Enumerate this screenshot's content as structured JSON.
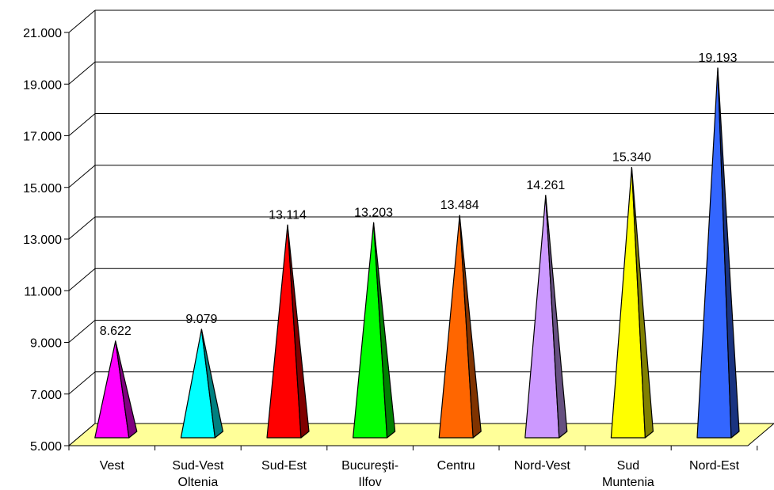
{
  "chart_data": {
    "type": "bar",
    "subtype": "3d-pyramid",
    "title": "",
    "xlabel": "",
    "ylabel": "",
    "ylim": [
      5000,
      21000
    ],
    "yticks": [
      5000,
      7000,
      9000,
      11000,
      13000,
      15000,
      17000,
      19000,
      21000
    ],
    "ytick_labels": [
      "5.000",
      "7.000",
      "9.000",
      "11.000",
      "13.000",
      "15.000",
      "17.000",
      "19.000",
      "21.000"
    ],
    "grid": true,
    "legend": "none",
    "floor_color": "#ffff99",
    "categories": [
      {
        "lines": [
          "Vest"
        ]
      },
      {
        "lines": [
          "Sud-Vest",
          "Oltenia"
        ]
      },
      {
        "lines": [
          "Sud-Est"
        ]
      },
      {
        "lines": [
          "Bucureşti-",
          "Ilfov"
        ]
      },
      {
        "lines": [
          "Centru"
        ]
      },
      {
        "lines": [
          "Nord-Vest"
        ]
      },
      {
        "lines": [
          "Sud",
          "Muntenia"
        ]
      },
      {
        "lines": [
          "Nord-Est"
        ]
      }
    ],
    "values": [
      8622,
      9079,
      13114,
      13203,
      13484,
      14261,
      15340,
      19193
    ],
    "value_labels": [
      "8.622",
      "9.079",
      "13.114",
      "13.203",
      "13.484",
      "14.261",
      "15.340",
      "19.193"
    ],
    "colors": [
      {
        "front": "#ff00ff",
        "side": "#800080"
      },
      {
        "front": "#00ffff",
        "side": "#008080"
      },
      {
        "front": "#ff0000",
        "side": "#800000"
      },
      {
        "front": "#00ff00",
        "side": "#008000"
      },
      {
        "front": "#ff6600",
        "side": "#803300"
      },
      {
        "front": "#cc99ff",
        "side": "#665080"
      },
      {
        "front": "#ffff00",
        "side": "#808000"
      },
      {
        "front": "#3366ff",
        "side": "#1a3380"
      }
    ]
  }
}
